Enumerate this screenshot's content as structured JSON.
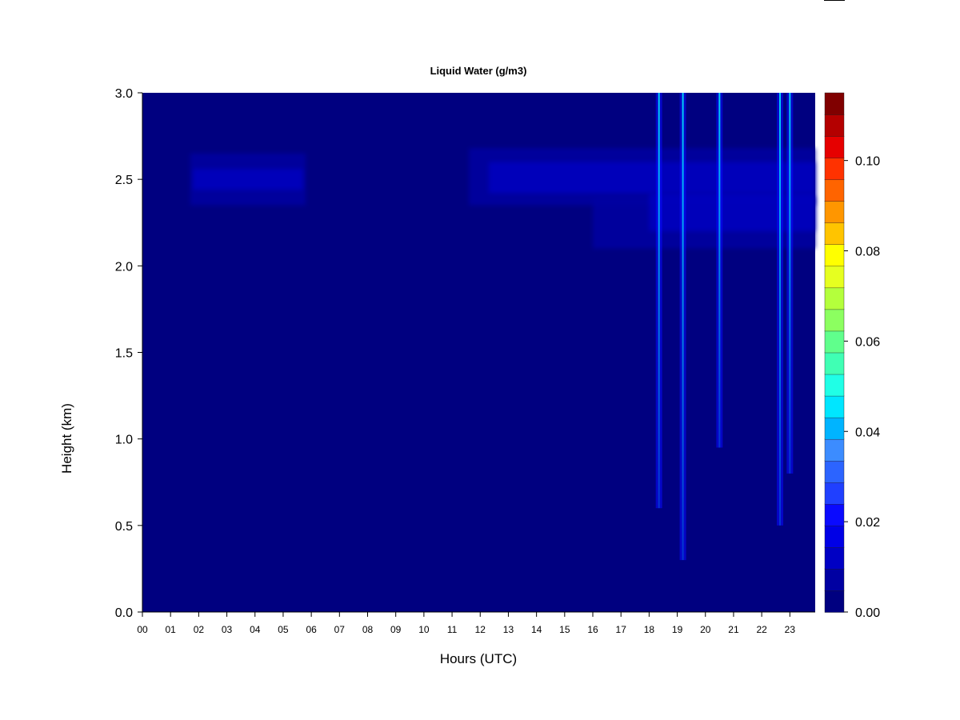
{
  "chart_data": {
    "type": "heatmap",
    "title": "Liquid Water (g/m3)",
    "xlabel": "Hours (UTC)",
    "ylabel": "Height (km)",
    "xlim": [
      0,
      23.9
    ],
    "ylim": [
      0,
      3.0
    ],
    "x_ticks": [
      "00",
      "01",
      "02",
      "03",
      "04",
      "05",
      "06",
      "07",
      "08",
      "09",
      "10",
      "11",
      "12",
      "13",
      "14",
      "15",
      "16",
      "17",
      "18",
      "19",
      "20",
      "21",
      "22",
      "23"
    ],
    "y_ticks": [
      "0.0",
      "0.5",
      "1.0",
      "1.5",
      "2.0",
      "2.5",
      "3.0"
    ],
    "colorbar": {
      "min": 0.0,
      "max": 0.115,
      "levels": 23,
      "ticks": [
        "0.00",
        "0.02",
        "0.04",
        "0.06",
        "0.08",
        "0.10"
      ],
      "colors": [
        "#000080",
        "#0000a2",
        "#0000c4",
        "#0000e6",
        "#0a0aff",
        "#2040ff",
        "#2c64ff",
        "#3c8cff",
        "#00b4ff",
        "#00e6ff",
        "#20ffe6",
        "#40ffb4",
        "#60ff8c",
        "#8cff60",
        "#b4ff3c",
        "#e6ff20",
        "#ffff00",
        "#ffc400",
        "#ff9600",
        "#ff6400",
        "#ff3200",
        "#e60000",
        "#b40000",
        "#800000"
      ]
    },
    "features": [
      {
        "kind": "cloud_layer",
        "x_start": 1.7,
        "x_end": 5.8,
        "y_bottom": 2.35,
        "y_top": 2.65,
        "value": 0.006
      },
      {
        "kind": "cloud_layer_core",
        "x_start": 1.8,
        "x_end": 5.7,
        "y_bottom": 2.44,
        "y_top": 2.56,
        "value": 0.012
      },
      {
        "kind": "cloud_layer",
        "x_start": 11.6,
        "x_end": 23.9,
        "y_bottom": 2.35,
        "y_top": 2.68,
        "value": 0.006
      },
      {
        "kind": "cloud_layer",
        "x_start": 16.0,
        "x_end": 23.9,
        "y_bottom": 2.1,
        "y_top": 2.4,
        "value": 0.006
      },
      {
        "kind": "cloud_layer_core",
        "x_start": 12.3,
        "x_end": 23.9,
        "y_bottom": 2.42,
        "y_top": 2.6,
        "value": 0.014
      },
      {
        "kind": "cloud_layer_core",
        "x_start": 18.0,
        "x_end": 23.9,
        "y_bottom": 2.2,
        "y_top": 2.42,
        "value": 0.01
      },
      {
        "kind": "column",
        "x": 18.35,
        "y_bottom": 0.6,
        "y_top": 3.0,
        "value": 0.03
      },
      {
        "kind": "column",
        "x": 19.2,
        "y_bottom": 0.3,
        "y_top": 3.0,
        "value": 0.05
      },
      {
        "kind": "column",
        "x": 20.5,
        "y_bottom": 0.95,
        "y_top": 3.0,
        "value": 0.04
      },
      {
        "kind": "column",
        "x": 22.65,
        "y_bottom": 0.5,
        "y_top": 3.0,
        "value": 0.03
      },
      {
        "kind": "column",
        "x": 23.0,
        "y_bottom": 0.8,
        "y_top": 3.0,
        "value": 0.03
      }
    ]
  }
}
